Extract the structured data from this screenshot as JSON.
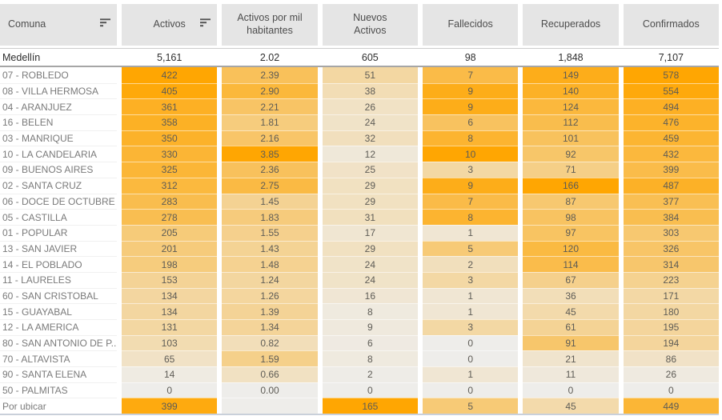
{
  "chart_data": {
    "type": "table",
    "title": "",
    "heatmap": {
      "scale": "sequential-orange-per-column",
      "low_color": "#eeedea",
      "high_color": "#ffa602",
      "header_bg": "#e5e5e5"
    },
    "columns": [
      {
        "key": "comuna",
        "label": "Comuna",
        "sortable": true
      },
      {
        "key": "activos",
        "label": "Activos",
        "sortable": true
      },
      {
        "key": "activos_por_mil",
        "label": "Activos por mil habitantes",
        "sortable": false
      },
      {
        "key": "nuevos_activos",
        "label": "Nuevos Activos",
        "sortable": false
      },
      {
        "key": "fallecidos",
        "label": "Fallecidos",
        "sortable": false
      },
      {
        "key": "recuperados",
        "label": "Recuperados",
        "sortable": false
      },
      {
        "key": "confirmados",
        "label": "Confirmados",
        "sortable": false
      }
    ],
    "totals_row": {
      "label": "Medellín",
      "values": [
        "5,161",
        "2.02",
        "605",
        "98",
        "1,848",
        "7,107"
      ]
    },
    "rows": [
      {
        "label": "07 - ROBLEDO",
        "values": [
          422,
          2.39,
          51,
          7,
          149,
          578
        ],
        "display": [
          "422",
          "2.39",
          "51",
          "7",
          "149",
          "578"
        ]
      },
      {
        "label": "08 - VILLA HERMOSA",
        "values": [
          405,
          2.9,
          38,
          9,
          140,
          554
        ],
        "display": [
          "405",
          "2.90",
          "38",
          "9",
          "140",
          "554"
        ]
      },
      {
        "label": "04 - ARANJUEZ",
        "values": [
          361,
          2.21,
          26,
          9,
          124,
          494
        ],
        "display": [
          "361",
          "2.21",
          "26",
          "9",
          "124",
          "494"
        ]
      },
      {
        "label": "16 - BELEN",
        "values": [
          358,
          1.81,
          24,
          6,
          112,
          476
        ],
        "display": [
          "358",
          "1.81",
          "24",
          "6",
          "112",
          "476"
        ]
      },
      {
        "label": "03 - MANRIQUE",
        "values": [
          350,
          2.16,
          32,
          8,
          101,
          459
        ],
        "display": [
          "350",
          "2.16",
          "32",
          "8",
          "101",
          "459"
        ]
      },
      {
        "label": "10 - LA CANDELARIA",
        "values": [
          330,
          3.85,
          12,
          10,
          92,
          432
        ],
        "display": [
          "330",
          "3.85",
          "12",
          "10",
          "92",
          "432"
        ]
      },
      {
        "label": "09 - BUENOS AIRES",
        "values": [
          325,
          2.36,
          25,
          3,
          71,
          399
        ],
        "display": [
          "325",
          "2.36",
          "25",
          "3",
          "71",
          "399"
        ]
      },
      {
        "label": "02 - SANTA CRUZ",
        "values": [
          312,
          2.75,
          29,
          9,
          166,
          487
        ],
        "display": [
          "312",
          "2.75",
          "29",
          "9",
          "166",
          "487"
        ]
      },
      {
        "label": "06 - DOCE DE OCTUBRE",
        "values": [
          283,
          1.45,
          29,
          7,
          87,
          377
        ],
        "display": [
          "283",
          "1.45",
          "29",
          "7",
          "87",
          "377"
        ]
      },
      {
        "label": "05 - CASTILLA",
        "values": [
          278,
          1.83,
          31,
          8,
          98,
          384
        ],
        "display": [
          "278",
          "1.83",
          "31",
          "8",
          "98",
          "384"
        ]
      },
      {
        "label": "01 - POPULAR",
        "values": [
          205,
          1.55,
          17,
          1,
          97,
          303
        ],
        "display": [
          "205",
          "1.55",
          "17",
          "1",
          "97",
          "303"
        ]
      },
      {
        "label": "13 - SAN JAVIER",
        "values": [
          201,
          1.43,
          29,
          5,
          120,
          326
        ],
        "display": [
          "201",
          "1.43",
          "29",
          "5",
          "120",
          "326"
        ]
      },
      {
        "label": "14 - EL POBLADO",
        "values": [
          198,
          1.48,
          24,
          2,
          114,
          314
        ],
        "display": [
          "198",
          "1.48",
          "24",
          "2",
          "114",
          "314"
        ]
      },
      {
        "label": "11 - LAURELES",
        "values": [
          153,
          1.24,
          24,
          3,
          67,
          223
        ],
        "display": [
          "153",
          "1.24",
          "24",
          "3",
          "67",
          "223"
        ]
      },
      {
        "label": "60 - SAN CRISTOBAL",
        "values": [
          134,
          1.26,
          16,
          1,
          36,
          171
        ],
        "display": [
          "134",
          "1.26",
          "16",
          "1",
          "36",
          "171"
        ]
      },
      {
        "label": "15 - GUAYABAL",
        "values": [
          134,
          1.39,
          8,
          1,
          45,
          180
        ],
        "display": [
          "134",
          "1.39",
          "8",
          "1",
          "45",
          "180"
        ]
      },
      {
        "label": "12 - LA AMERICA",
        "values": [
          131,
          1.34,
          9,
          3,
          61,
          195
        ],
        "display": [
          "131",
          "1.34",
          "9",
          "3",
          "61",
          "195"
        ]
      },
      {
        "label": "80 - SAN ANTONIO DE P..",
        "values": [
          103,
          0.82,
          6,
          0,
          91,
          194
        ],
        "display": [
          "103",
          "0.82",
          "6",
          "0",
          "91",
          "194"
        ]
      },
      {
        "label": "70 - ALTAVISTA",
        "values": [
          65,
          1.59,
          8,
          0,
          21,
          86
        ],
        "display": [
          "65",
          "1.59",
          "8",
          "0",
          "21",
          "86"
        ]
      },
      {
        "label": "90 - SANTA ELENA",
        "values": [
          14,
          0.66,
          2,
          1,
          11,
          26
        ],
        "display": [
          "14",
          "0.66",
          "2",
          "1",
          "11",
          "26"
        ]
      },
      {
        "label": "50 - PALMITAS",
        "values": [
          0,
          0.0,
          0,
          0,
          0,
          0
        ],
        "display": [
          "0",
          "0.00",
          "0",
          "0",
          "0",
          "0"
        ]
      },
      {
        "label": "Por ubicar",
        "values": [
          399,
          null,
          165,
          5,
          45,
          449
        ],
        "display": [
          "399",
          "",
          "165",
          "5",
          "45",
          "449"
        ]
      }
    ]
  }
}
